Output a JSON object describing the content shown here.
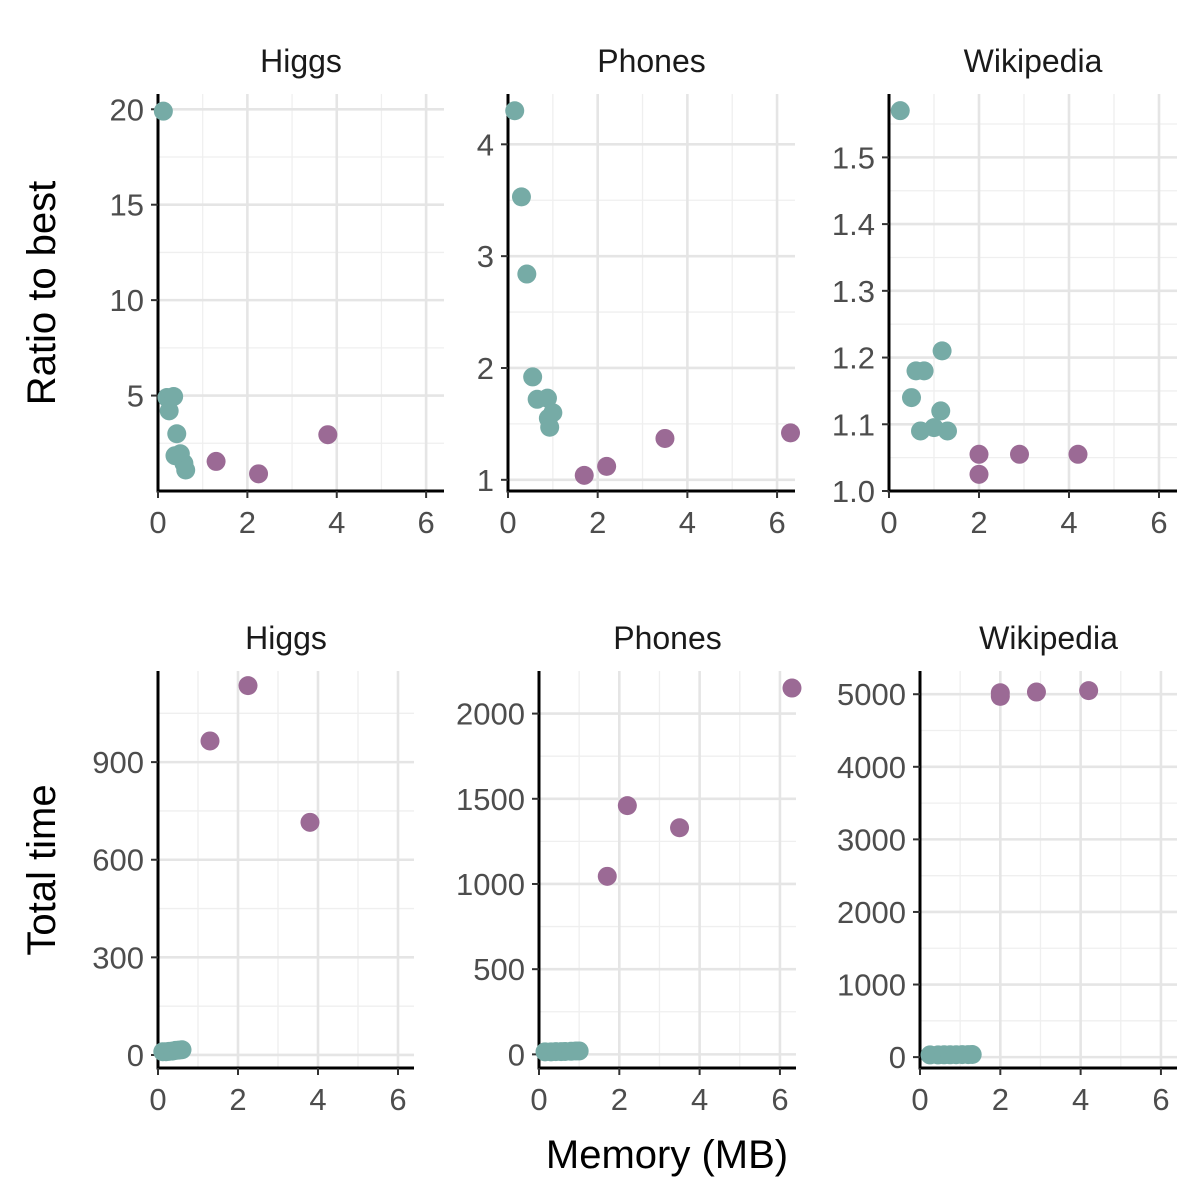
{
  "colors": {
    "memory_efficient": "#76aba6",
    "memory_heavy": "#9b6a95"
  },
  "figure": {
    "ylabel_top": "Ratio to best",
    "ylabel_bottom": "Total time",
    "xlabel": "Memory (MB)"
  },
  "chart_data": [
    {
      "type": "scatter",
      "title": "Higgs",
      "xlim": [
        0,
        6.4
      ],
      "ylim": [
        0,
        20.8
      ],
      "xticks": [
        0,
        2,
        4,
        6
      ],
      "yticks": [
        5,
        10,
        15,
        20
      ],
      "points": [
        {
          "x": 0.12,
          "y": 19.9,
          "group": "memory_efficient"
        },
        {
          "x": 0.2,
          "y": 4.9,
          "group": "memory_efficient"
        },
        {
          "x": 0.35,
          "y": 4.95,
          "group": "memory_efficient"
        },
        {
          "x": 0.25,
          "y": 4.2,
          "group": "memory_efficient"
        },
        {
          "x": 0.42,
          "y": 3.0,
          "group": "memory_efficient"
        },
        {
          "x": 0.38,
          "y": 1.85,
          "group": "memory_efficient"
        },
        {
          "x": 0.5,
          "y": 1.95,
          "group": "memory_efficient"
        },
        {
          "x": 0.58,
          "y": 1.45,
          "group": "memory_efficient"
        },
        {
          "x": 0.62,
          "y": 1.1,
          "group": "memory_efficient"
        },
        {
          "x": 1.3,
          "y": 1.55,
          "group": "memory_heavy"
        },
        {
          "x": 2.25,
          "y": 0.9,
          "group": "memory_heavy"
        },
        {
          "x": 3.8,
          "y": 2.95,
          "group": "memory_heavy"
        }
      ]
    },
    {
      "type": "scatter",
      "title": "Phones",
      "xlim": [
        0,
        6.4
      ],
      "ylim": [
        0.9,
        4.45
      ],
      "xticks": [
        0,
        2,
        4,
        6
      ],
      "yticks": [
        1,
        2,
        3,
        4
      ],
      "points": [
        {
          "x": 0.15,
          "y": 4.3,
          "group": "memory_efficient"
        },
        {
          "x": 0.3,
          "y": 3.53,
          "group": "memory_efficient"
        },
        {
          "x": 0.42,
          "y": 2.84,
          "group": "memory_efficient"
        },
        {
          "x": 0.55,
          "y": 1.92,
          "group": "memory_efficient"
        },
        {
          "x": 0.65,
          "y": 1.72,
          "group": "memory_efficient"
        },
        {
          "x": 0.88,
          "y": 1.73,
          "group": "memory_efficient"
        },
        {
          "x": 1.0,
          "y": 1.6,
          "group": "memory_efficient"
        },
        {
          "x": 0.9,
          "y": 1.55,
          "group": "memory_efficient"
        },
        {
          "x": 0.93,
          "y": 1.47,
          "group": "memory_efficient"
        },
        {
          "x": 1.7,
          "y": 1.04,
          "group": "memory_heavy"
        },
        {
          "x": 2.2,
          "y": 1.12,
          "group": "memory_heavy"
        },
        {
          "x": 3.5,
          "y": 1.37,
          "group": "memory_heavy"
        },
        {
          "x": 6.3,
          "y": 1.42,
          "group": "memory_heavy"
        }
      ]
    },
    {
      "type": "scatter",
      "title": "Wikipedia",
      "xlim": [
        0,
        6.4
      ],
      "ylim": [
        1.0,
        1.595
      ],
      "xticks": [
        0,
        2,
        4,
        6
      ],
      "yticks": [
        1.0,
        1.1,
        1.2,
        1.3,
        1.4,
        1.5
      ],
      "ytick_labels": [
        "1.0",
        "1.1",
        "1.2",
        "1.3",
        "1.4",
        "1.5"
      ],
      "points": [
        {
          "x": 0.25,
          "y": 1.57,
          "group": "memory_efficient"
        },
        {
          "x": 0.5,
          "y": 1.14,
          "group": "memory_efficient"
        },
        {
          "x": 0.6,
          "y": 1.18,
          "group": "memory_efficient"
        },
        {
          "x": 0.78,
          "y": 1.18,
          "group": "memory_efficient"
        },
        {
          "x": 0.7,
          "y": 1.09,
          "group": "memory_efficient"
        },
        {
          "x": 1.0,
          "y": 1.095,
          "group": "memory_efficient"
        },
        {
          "x": 1.15,
          "y": 1.12,
          "group": "memory_efficient"
        },
        {
          "x": 1.18,
          "y": 1.21,
          "group": "memory_efficient"
        },
        {
          "x": 1.3,
          "y": 1.09,
          "group": "memory_efficient"
        },
        {
          "x": 2.0,
          "y": 1.055,
          "group": "memory_heavy"
        },
        {
          "x": 2.0,
          "y": 1.025,
          "group": "memory_heavy"
        },
        {
          "x": 2.9,
          "y": 1.055,
          "group": "memory_heavy"
        },
        {
          "x": 4.2,
          "y": 1.055,
          "group": "memory_heavy"
        }
      ]
    },
    {
      "type": "scatter",
      "title": "Higgs",
      "xlim": [
        0,
        6.4
      ],
      "ylim": [
        -40,
        1180
      ],
      "xticks": [
        0,
        2,
        4,
        6
      ],
      "yticks": [
        0,
        300,
        600,
        900
      ],
      "points": [
        {
          "x": 0.12,
          "y": 10,
          "group": "memory_efficient"
        },
        {
          "x": 0.2,
          "y": 10,
          "group": "memory_efficient"
        },
        {
          "x": 0.28,
          "y": 11,
          "group": "memory_efficient"
        },
        {
          "x": 0.36,
          "y": 12,
          "group": "memory_efficient"
        },
        {
          "x": 0.44,
          "y": 14,
          "group": "memory_efficient"
        },
        {
          "x": 0.52,
          "y": 15,
          "group": "memory_efficient"
        },
        {
          "x": 0.6,
          "y": 16,
          "group": "memory_efficient"
        },
        {
          "x": 1.3,
          "y": 965,
          "group": "memory_heavy"
        },
        {
          "x": 2.25,
          "y": 1135,
          "group": "memory_heavy"
        },
        {
          "x": 3.8,
          "y": 715,
          "group": "memory_heavy"
        }
      ]
    },
    {
      "type": "scatter",
      "title": "Phones",
      "xlim": [
        0,
        6.4
      ],
      "ylim": [
        -80,
        2250
      ],
      "xticks": [
        0,
        2,
        4,
        6
      ],
      "yticks": [
        0,
        500,
        1000,
        1500,
        2000
      ],
      "points": [
        {
          "x": 0.15,
          "y": 15,
          "group": "memory_efficient"
        },
        {
          "x": 0.3,
          "y": 15,
          "group": "memory_efficient"
        },
        {
          "x": 0.42,
          "y": 16,
          "group": "memory_efficient"
        },
        {
          "x": 0.55,
          "y": 16,
          "group": "memory_efficient"
        },
        {
          "x": 0.65,
          "y": 17,
          "group": "memory_efficient"
        },
        {
          "x": 0.8,
          "y": 18,
          "group": "memory_efficient"
        },
        {
          "x": 0.92,
          "y": 20,
          "group": "memory_efficient"
        },
        {
          "x": 1.0,
          "y": 20,
          "group": "memory_efficient"
        },
        {
          "x": 1.7,
          "y": 1045,
          "group": "memory_heavy"
        },
        {
          "x": 2.2,
          "y": 1460,
          "group": "memory_heavy"
        },
        {
          "x": 3.5,
          "y": 1330,
          "group": "memory_heavy"
        },
        {
          "x": 6.3,
          "y": 2150,
          "group": "memory_heavy"
        }
      ]
    },
    {
      "type": "scatter",
      "title": "Wikipedia",
      "xlim": [
        0,
        6.4
      ],
      "ylim": [
        -150,
        5320
      ],
      "xticks": [
        0,
        2,
        4,
        6
      ],
      "yticks": [
        0,
        1000,
        2000,
        3000,
        4000,
        5000
      ],
      "points": [
        {
          "x": 0.25,
          "y": 30,
          "group": "memory_efficient"
        },
        {
          "x": 0.45,
          "y": 30,
          "group": "memory_efficient"
        },
        {
          "x": 0.6,
          "y": 32,
          "group": "memory_efficient"
        },
        {
          "x": 0.75,
          "y": 32,
          "group": "memory_efficient"
        },
        {
          "x": 0.9,
          "y": 33,
          "group": "memory_efficient"
        },
        {
          "x": 1.05,
          "y": 34,
          "group": "memory_efficient"
        },
        {
          "x": 1.2,
          "y": 35,
          "group": "memory_efficient"
        },
        {
          "x": 1.3,
          "y": 36,
          "group": "memory_efficient"
        },
        {
          "x": 2.0,
          "y": 5020,
          "group": "memory_heavy"
        },
        {
          "x": 2.0,
          "y": 4970,
          "group": "memory_heavy"
        },
        {
          "x": 2.9,
          "y": 5030,
          "group": "memory_heavy"
        },
        {
          "x": 4.2,
          "y": 5050,
          "group": "memory_heavy"
        }
      ]
    }
  ]
}
